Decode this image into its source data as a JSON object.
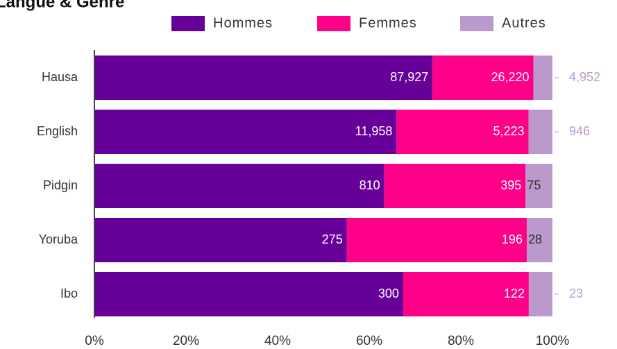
{
  "chart_data": {
    "type": "bar",
    "orientation": "horizontal",
    "stacking": "percent",
    "title": "Langue & Genre",
    "categories": [
      "Hausa",
      "English",
      "Pidgin",
      "Yoruba",
      "Ibo"
    ],
    "series": [
      {
        "name": "Hommes",
        "color": "#660099",
        "values": [
          87927,
          11958,
          810,
          275,
          300
        ],
        "value_labels": [
          "87,927",
          "11,958",
          "810",
          "275",
          "300"
        ]
      },
      {
        "name": "Femmes",
        "color": "#ff0088",
        "values": [
          26220,
          5223,
          395,
          196,
          122
        ],
        "value_labels": [
          "26,220",
          "5,223",
          "395",
          "196",
          "122"
        ]
      },
      {
        "name": "Autres",
        "color": "#bb99cc",
        "values": [
          4952,
          946,
          75,
          28,
          23
        ],
        "value_labels": [
          "4,952",
          "946",
          "75",
          "28",
          "23"
        ]
      }
    ],
    "xlim": [
      0,
      100
    ],
    "xticks": [
      {
        "value": 0,
        "label": "0%"
      },
      {
        "value": 20,
        "label": "20%"
      },
      {
        "value": 40,
        "label": "40%"
      },
      {
        "value": 60,
        "label": "60%"
      },
      {
        "value": 80,
        "label": "80%"
      },
      {
        "value": 100,
        "label": "100%"
      }
    ],
    "legend": "top"
  }
}
